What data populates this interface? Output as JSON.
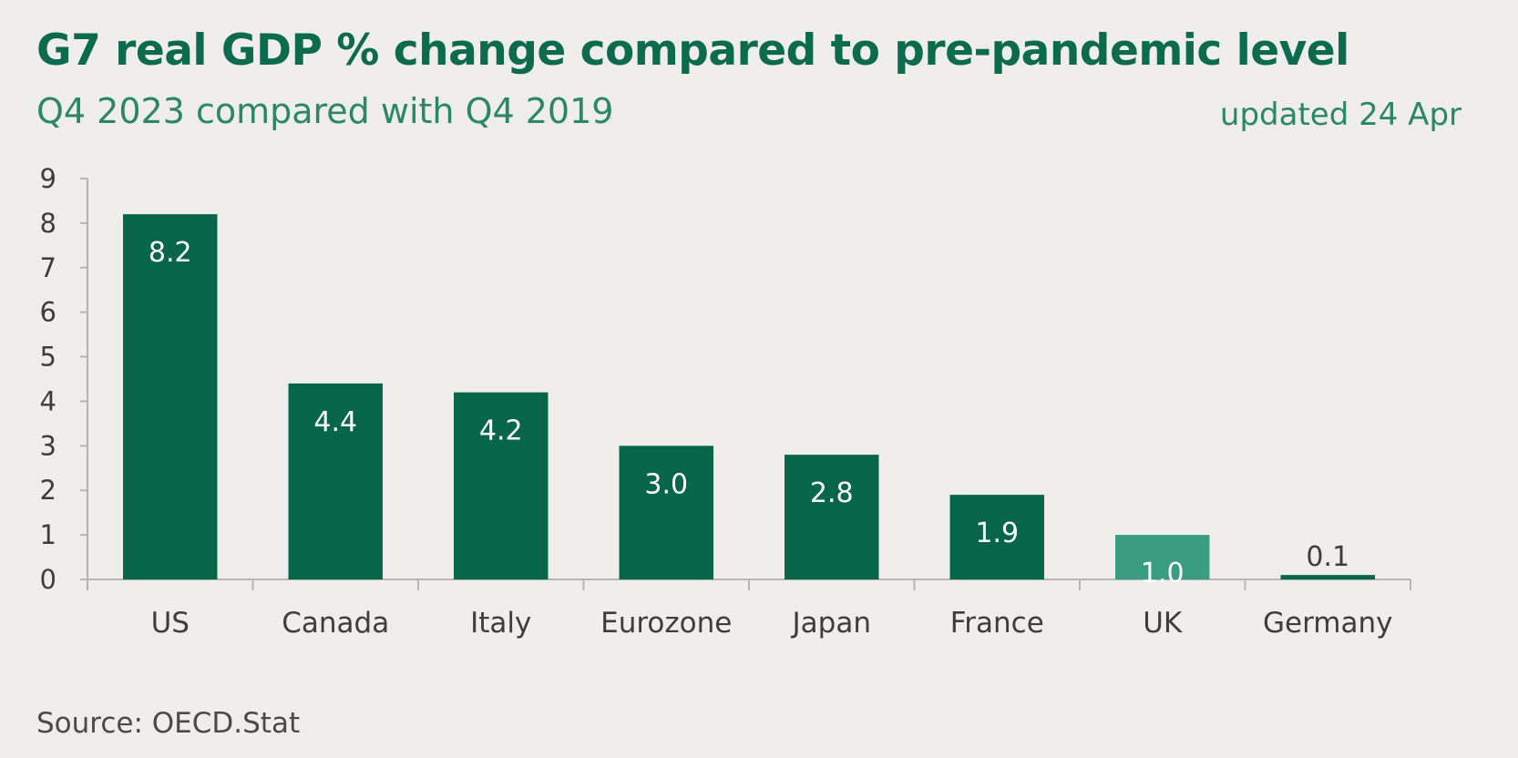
{
  "header": {
    "title": "G7 real GDP % change compared to pre-pandemic level",
    "subtitle": "Q4 2023 compared with Q4 2019",
    "updated": "updated 24 Apr"
  },
  "footer": {
    "source": "Source: OECD.Stat"
  },
  "colors": {
    "background": "#efeeed",
    "bar": "#076647",
    "bar_highlight": "#3a9c82",
    "title": "#0b6b4c",
    "axis": "#b5b5b5",
    "label_inside": "#ffffff",
    "label_outside": "#3d3d3d"
  },
  "chart_data": {
    "type": "bar",
    "categories": [
      "US",
      "Canada",
      "Italy",
      "Eurozone",
      "Japan",
      "France",
      "UK",
      "Germany"
    ],
    "values": [
      8.2,
      4.4,
      4.2,
      3.0,
      2.8,
      1.9,
      1.0,
      0.1
    ],
    "data_labels": [
      "8.2",
      "4.4",
      "4.2",
      "3.0",
      "2.8",
      "1.9",
      "1.0",
      "0.1"
    ],
    "highlight": "UK",
    "ylim": [
      0,
      9
    ],
    "yticks": [
      0,
      1,
      2,
      3,
      4,
      5,
      6,
      7,
      8,
      9
    ],
    "xlabel": "",
    "ylabel": "",
    "grid": false,
    "legend": "none"
  }
}
